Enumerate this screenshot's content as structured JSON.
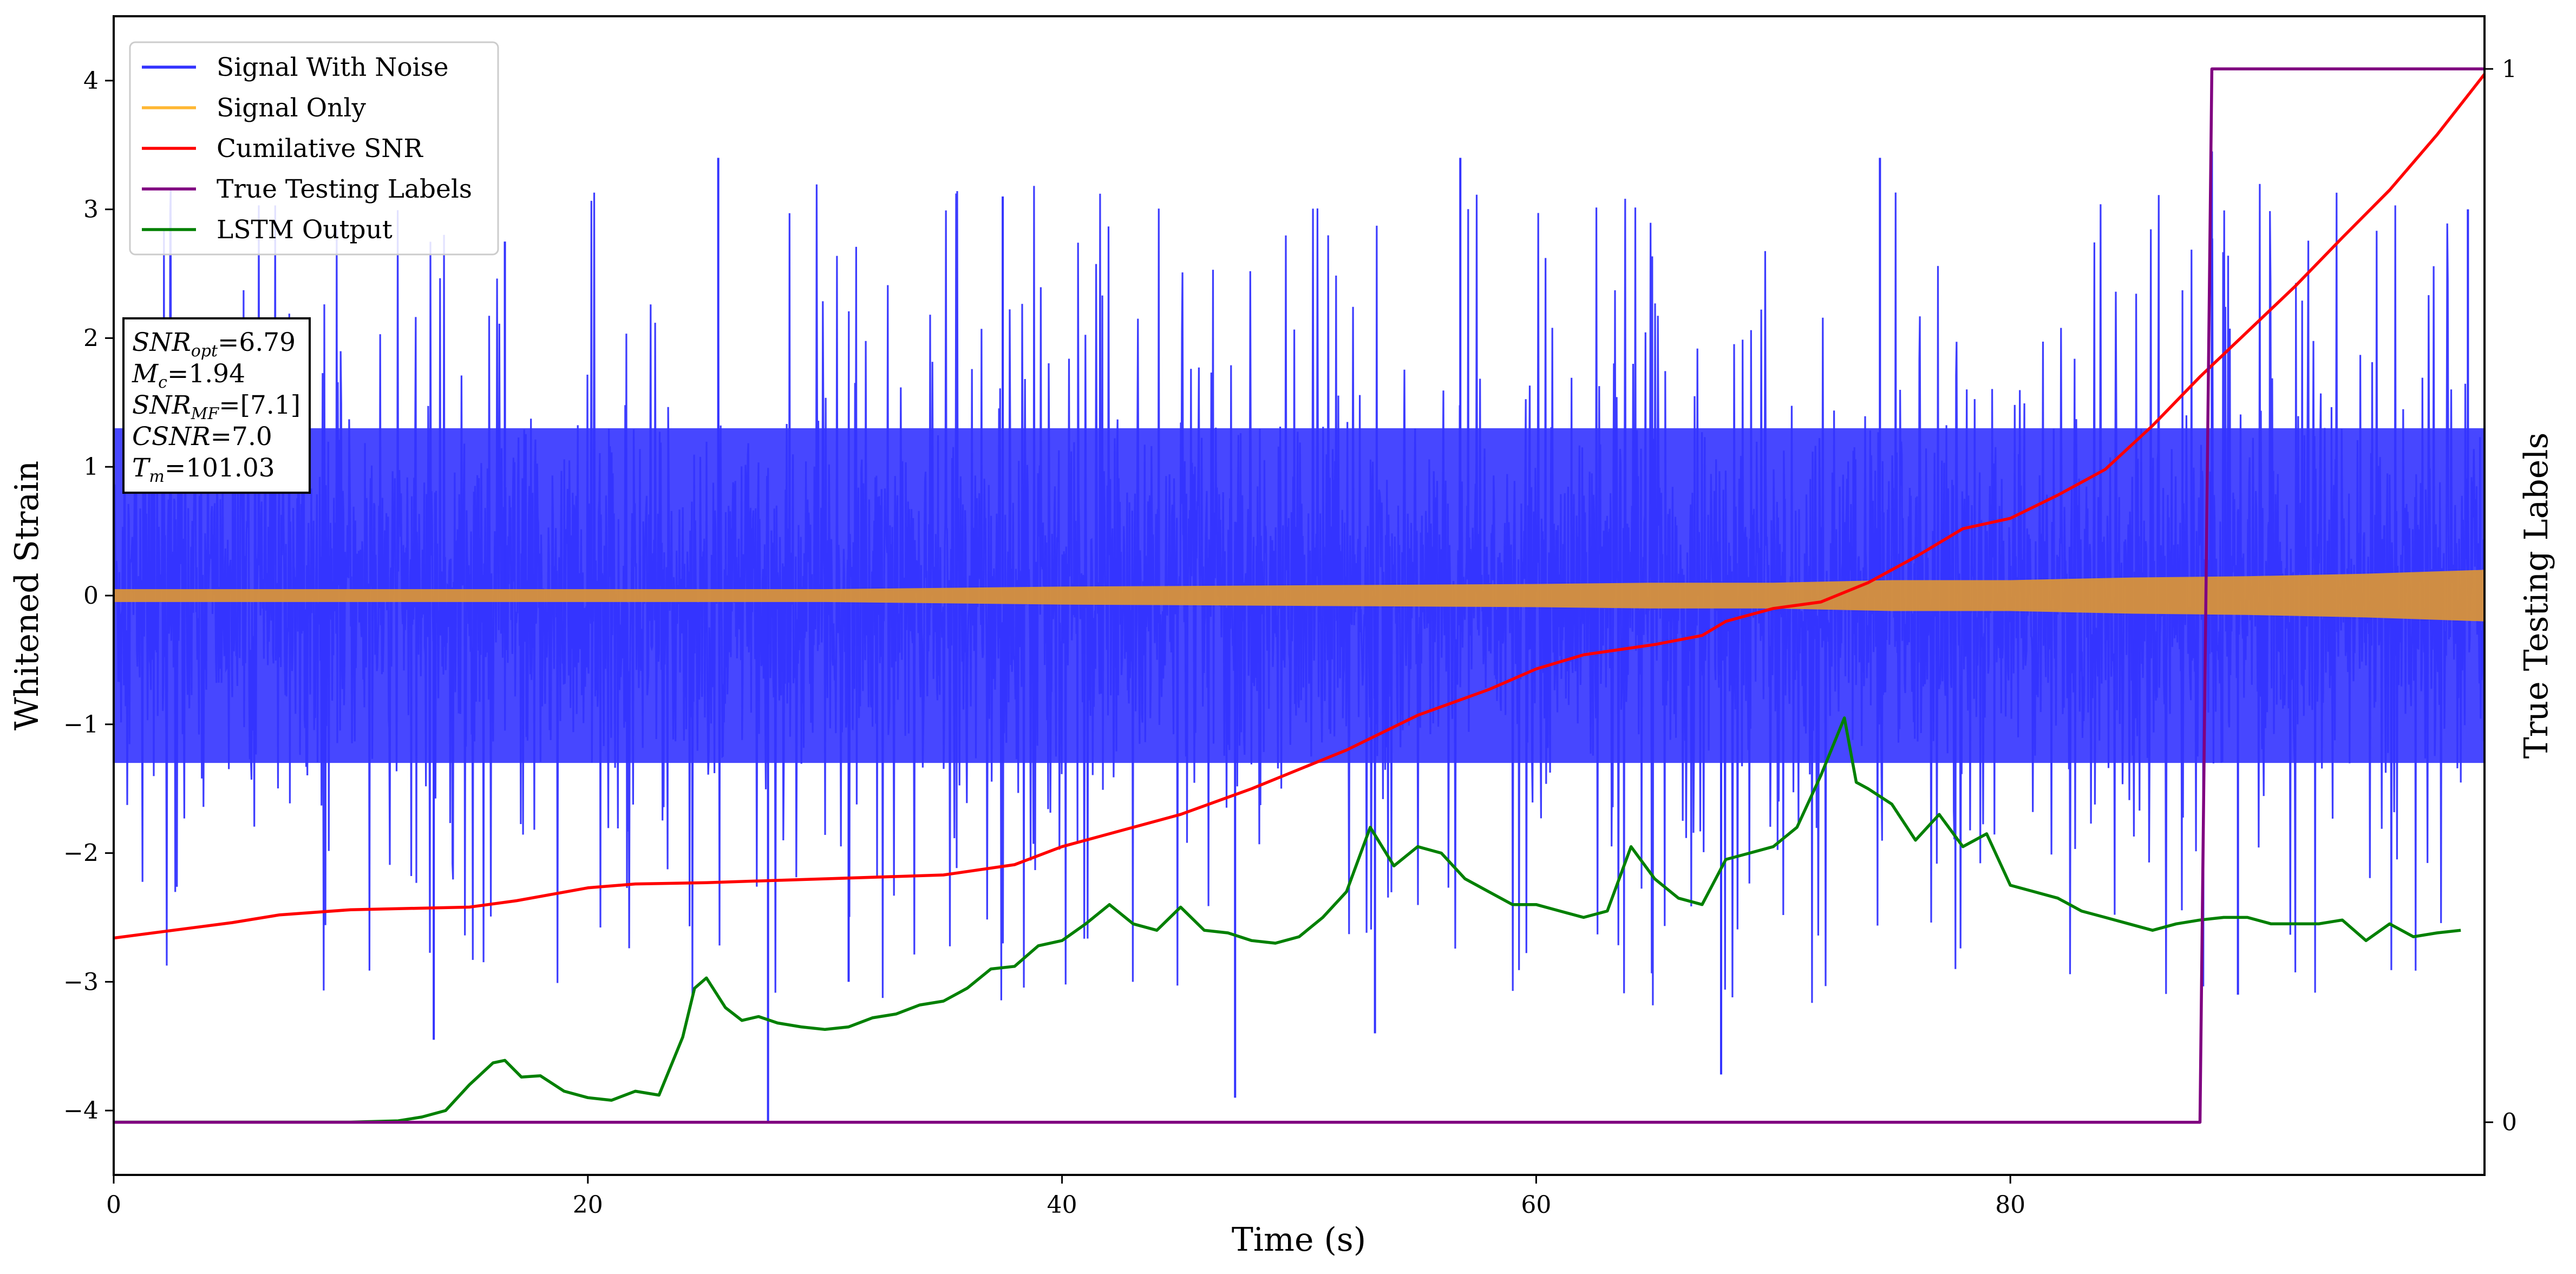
{
  "chart_data": {
    "type": "line",
    "xlabel": "Time (s)",
    "ylabel": "Whitened Strain",
    "y2label": "True Testing Labels",
    "xlim": [
      0,
      100
    ],
    "ylim": [
      -4.5,
      4.5
    ],
    "y2lim": [
      -0.05,
      1.05
    ],
    "xticks": [
      0,
      20,
      40,
      60,
      80
    ],
    "yticks": [
      -4,
      -3,
      -2,
      -1,
      0,
      1,
      2,
      3,
      4
    ],
    "y2ticks": [
      0,
      1
    ],
    "grid": false,
    "legend_position": "top-left",
    "legend": [
      {
        "label": "Signal With Noise",
        "color": "#3333ff"
      },
      {
        "label": "Signal Only",
        "color": "#ffb733"
      },
      {
        "label": "Cumilative SNR",
        "color": "#ff0000"
      },
      {
        "label": "True Testing Labels",
        "color": "#800080"
      },
      {
        "label": "LSTM Output",
        "color": "#008000"
      }
    ],
    "annotation": {
      "lines": [
        {
          "main": "SNR",
          "sub": "opt",
          "rest": "=6.79"
        },
        {
          "main": "M",
          "sub": "c",
          "rest": "=1.94"
        },
        {
          "main": "SNR",
          "sub": "MF",
          "rest": "=[7.1]"
        },
        {
          "main": "CSNR",
          "sub": "",
          "rest": "=7.0"
        },
        {
          "main": "T",
          "sub": "m",
          "rest": "=101.03"
        }
      ]
    },
    "series": [
      {
        "name": "Signal With Noise",
        "color": "#3333ff",
        "kind": "noise",
        "x_range": [
          0,
          100
        ],
        "band": [
          -1.3,
          1.3
        ],
        "spike_max": 3.45,
        "spike_min": -4.1
      },
      {
        "name": "Signal Only",
        "color": "#d8923a",
        "kind": "envelope",
        "x": [
          0,
          10,
          20,
          30,
          40,
          50,
          60,
          65,
          70,
          75,
          80,
          85,
          90,
          95,
          100
        ],
        "amplitude": [
          0.05,
          0.05,
          0.05,
          0.05,
          0.07,
          0.08,
          0.09,
          0.1,
          0.1,
          0.12,
          0.12,
          0.14,
          0.15,
          0.17,
          0.2
        ]
      },
      {
        "name": "Cumilative SNR",
        "color": "#ff0000",
        "x": [
          0,
          5,
          7,
          10,
          15,
          17,
          20,
          22,
          25,
          30,
          35,
          38,
          40,
          45,
          48,
          52,
          55,
          58,
          60,
          62,
          65,
          67,
          68,
          70,
          72,
          74,
          76,
          78,
          80,
          82,
          84,
          86,
          88,
          90,
          92,
          94,
          96,
          98,
          100
        ],
        "y": [
          -2.66,
          -2.54,
          -2.48,
          -2.44,
          -2.42,
          -2.37,
          -2.27,
          -2.24,
          -2.23,
          -2.2,
          -2.17,
          -2.09,
          -1.95,
          -1.7,
          -1.5,
          -1.2,
          -0.93,
          -0.73,
          -0.57,
          -0.46,
          -0.38,
          -0.31,
          -0.2,
          -0.1,
          -0.05,
          0.1,
          0.3,
          0.52,
          0.6,
          0.78,
          0.98,
          1.32,
          1.7,
          2.05,
          2.4,
          2.78,
          3.15,
          3.58,
          4.05
        ]
      },
      {
        "name": "True Testing Labels",
        "color": "#800080",
        "axis": "right",
        "x": [
          0,
          88,
          88.5,
          100
        ],
        "y": [
          0,
          0,
          1,
          1
        ]
      },
      {
        "name": "LSTM Output",
        "color": "#008000",
        "x": [
          0,
          10,
          12,
          13,
          14,
          15,
          16,
          16.5,
          17.2,
          18,
          19,
          20,
          21,
          22,
          23,
          24,
          24.5,
          25,
          25.8,
          26.5,
          27.2,
          28,
          29,
          30,
          31,
          32,
          33,
          34,
          35,
          36,
          37,
          38,
          39,
          40,
          41,
          42,
          43,
          44,
          45,
          46,
          47,
          48,
          49,
          50,
          51,
          52,
          53,
          54,
          55,
          56,
          57,
          58,
          59,
          60,
          61,
          62,
          63,
          64,
          65,
          66,
          67,
          68,
          69,
          70,
          71,
          72,
          73,
          73.5,
          74,
          75,
          76,
          77,
          78,
          79,
          80,
          81,
          82,
          83,
          84,
          85,
          86,
          87,
          88,
          89,
          90,
          91,
          92,
          93,
          94,
          95,
          96,
          97,
          98,
          99
        ],
        "y": [
          -4.09,
          -4.09,
          -4.08,
          -4.05,
          -4.0,
          -3.8,
          -3.63,
          -3.61,
          -3.74,
          -3.73,
          -3.85,
          -3.9,
          -3.92,
          -3.85,
          -3.88,
          -3.43,
          -3.05,
          -2.97,
          -3.2,
          -3.3,
          -3.27,
          -3.32,
          -3.35,
          -3.37,
          -3.35,
          -3.28,
          -3.25,
          -3.18,
          -3.15,
          -3.05,
          -2.9,
          -2.88,
          -2.72,
          -2.68,
          -2.55,
          -2.4,
          -2.55,
          -2.6,
          -2.42,
          -2.6,
          -2.62,
          -2.68,
          -2.7,
          -2.65,
          -2.5,
          -2.3,
          -1.8,
          -2.1,
          -1.95,
          -2.0,
          -2.2,
          -2.3,
          -2.4,
          -2.4,
          -2.45,
          -2.5,
          -2.45,
          -1.95,
          -2.2,
          -2.35,
          -2.4,
          -2.05,
          -2.0,
          -1.95,
          -1.8,
          -1.4,
          -0.95,
          -1.45,
          -1.5,
          -1.62,
          -1.9,
          -1.7,
          -1.95,
          -1.85,
          -2.25,
          -2.3,
          -2.35,
          -2.45,
          -2.5,
          -2.55,
          -2.6,
          -2.55,
          -2.52,
          -2.5,
          -2.5,
          -2.55,
          -2.55,
          -2.55,
          -2.52,
          -2.68,
          -2.55,
          -2.65,
          -2.62,
          -2.6
        ]
      }
    ]
  }
}
